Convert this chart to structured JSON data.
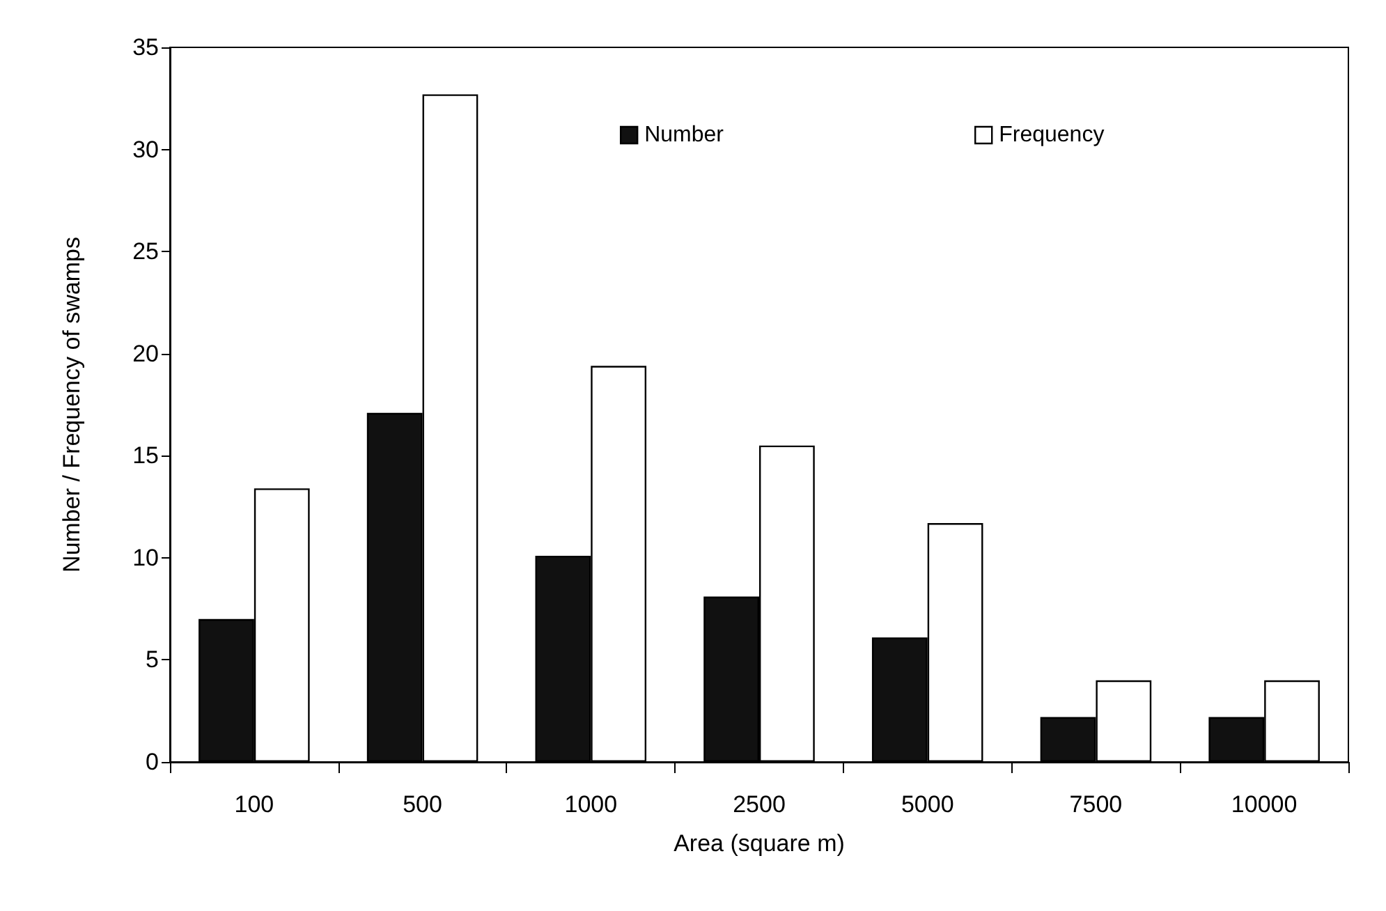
{
  "chart_data": {
    "type": "bar",
    "xlabel": "Area (square m)",
    "ylabel": "Number / Frequency of swamps",
    "categories": [
      "100",
      "500",
      "1000",
      "2500",
      "5000",
      "7500",
      "10000"
    ],
    "series": [
      {
        "name": "Number",
        "color": "#111111",
        "values": [
          7,
          17.1,
          10.1,
          8.1,
          6.1,
          2.2,
          2.2
        ]
      },
      {
        "name": "Frequency",
        "color": "#ffffff",
        "values": [
          13.4,
          32.7,
          19.4,
          15.5,
          11.7,
          4,
          4
        ]
      }
    ],
    "ylim": [
      0,
      35
    ],
    "yticks": [
      0,
      5,
      10,
      15,
      20,
      25,
      30,
      35
    ],
    "grid": false,
    "legend": "top right"
  }
}
